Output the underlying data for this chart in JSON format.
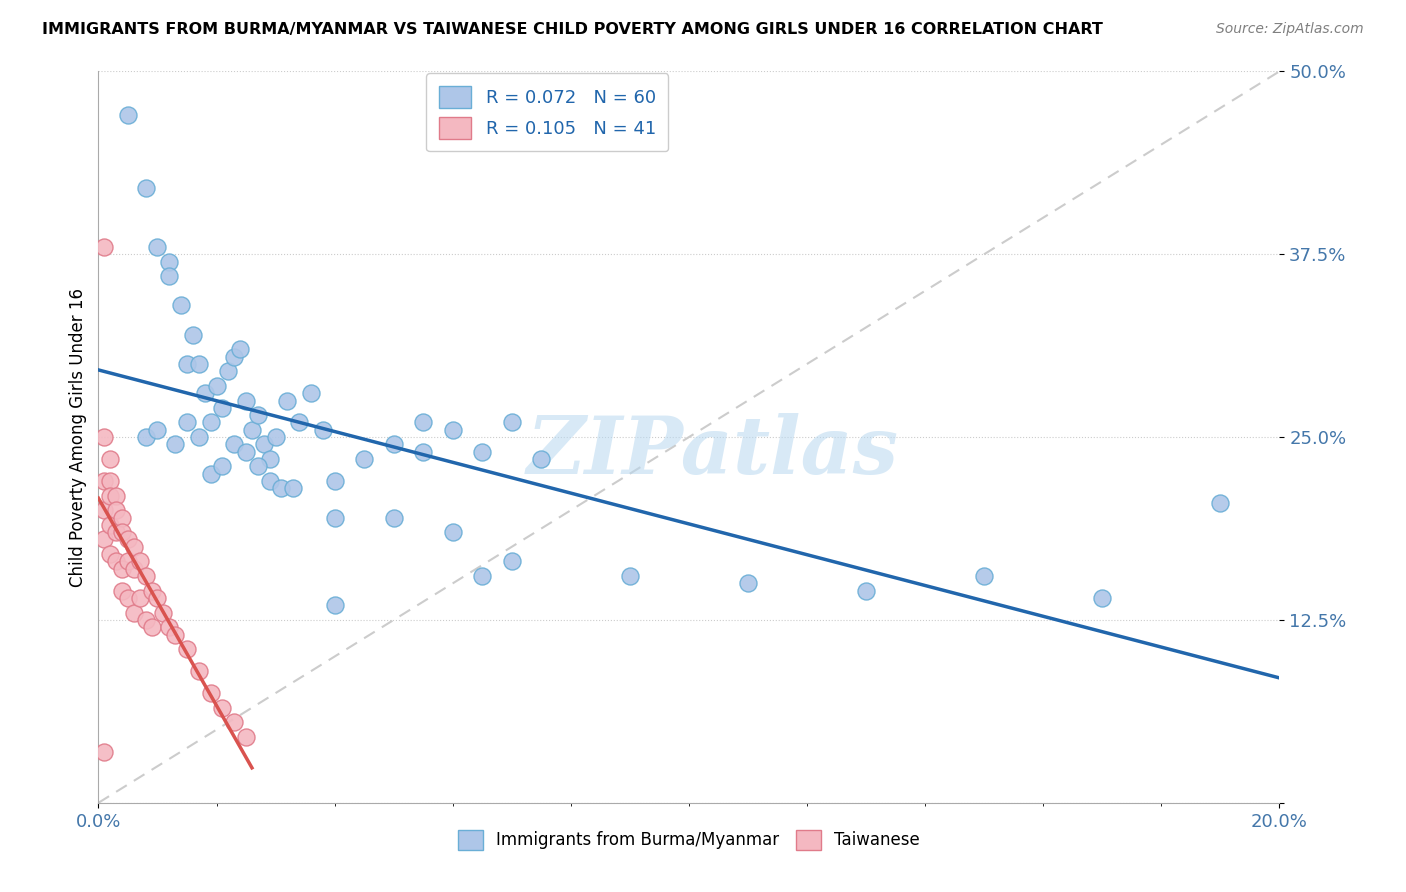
{
  "title": "IMMIGRANTS FROM BURMA/MYANMAR VS TAIWANESE CHILD POVERTY AMONG GIRLS UNDER 16 CORRELATION CHART",
  "source": "Source: ZipAtlas.com",
  "ylabel": "Child Poverty Among Girls Under 16",
  "legend1_label": "R = 0.072   N = 60",
  "legend2_label": "R = 0.105   N = 41",
  "watermark": "ZIPatlas",
  "series1_color": "#aec6e8",
  "series1_edge": "#6aaed6",
  "series2_color": "#f4b8c1",
  "series2_edge": "#e07b8a",
  "trend1_color": "#2166ac",
  "trend2_color": "#d9534f",
  "diag_color": "#cccccc",
  "xlim": [
    0.0,
    0.2
  ],
  "ylim": [
    0.0,
    0.5
  ],
  "series1_x": [
    0.005,
    0.008,
    0.01,
    0.012,
    0.012,
    0.014,
    0.015,
    0.016,
    0.017,
    0.018,
    0.019,
    0.02,
    0.021,
    0.022,
    0.023,
    0.024,
    0.025,
    0.026,
    0.027,
    0.028,
    0.029,
    0.03,
    0.032,
    0.034,
    0.036,
    0.038,
    0.04,
    0.045,
    0.05,
    0.055,
    0.055,
    0.06,
    0.065,
    0.07,
    0.075,
    0.008,
    0.01,
    0.013,
    0.015,
    0.017,
    0.019,
    0.021,
    0.023,
    0.025,
    0.027,
    0.029,
    0.031,
    0.033,
    0.04,
    0.05,
    0.06,
    0.07,
    0.09,
    0.11,
    0.13,
    0.15,
    0.17,
    0.19,
    0.065,
    0.04
  ],
  "series1_y": [
    0.47,
    0.42,
    0.38,
    0.37,
    0.36,
    0.34,
    0.3,
    0.32,
    0.3,
    0.28,
    0.26,
    0.285,
    0.27,
    0.295,
    0.305,
    0.31,
    0.275,
    0.255,
    0.265,
    0.245,
    0.235,
    0.25,
    0.275,
    0.26,
    0.28,
    0.255,
    0.22,
    0.235,
    0.245,
    0.24,
    0.26,
    0.255,
    0.24,
    0.26,
    0.235,
    0.25,
    0.255,
    0.245,
    0.26,
    0.25,
    0.225,
    0.23,
    0.245,
    0.24,
    0.23,
    0.22,
    0.215,
    0.215,
    0.195,
    0.195,
    0.185,
    0.165,
    0.155,
    0.15,
    0.145,
    0.155,
    0.14,
    0.205,
    0.155,
    0.135
  ],
  "series2_x": [
    0.001,
    0.001,
    0.001,
    0.001,
    0.001,
    0.002,
    0.002,
    0.002,
    0.002,
    0.002,
    0.003,
    0.003,
    0.003,
    0.003,
    0.004,
    0.004,
    0.004,
    0.004,
    0.005,
    0.005,
    0.005,
    0.006,
    0.006,
    0.006,
    0.007,
    0.007,
    0.008,
    0.008,
    0.009,
    0.009,
    0.01,
    0.011,
    0.012,
    0.013,
    0.015,
    0.017,
    0.019,
    0.021,
    0.023,
    0.025,
    0.001
  ],
  "series2_y": [
    0.38,
    0.25,
    0.22,
    0.2,
    0.18,
    0.235,
    0.22,
    0.21,
    0.19,
    0.17,
    0.21,
    0.2,
    0.185,
    0.165,
    0.195,
    0.185,
    0.16,
    0.145,
    0.18,
    0.165,
    0.14,
    0.175,
    0.16,
    0.13,
    0.165,
    0.14,
    0.155,
    0.125,
    0.145,
    0.12,
    0.14,
    0.13,
    0.12,
    0.115,
    0.105,
    0.09,
    0.075,
    0.065,
    0.055,
    0.045,
    0.035
  ]
}
